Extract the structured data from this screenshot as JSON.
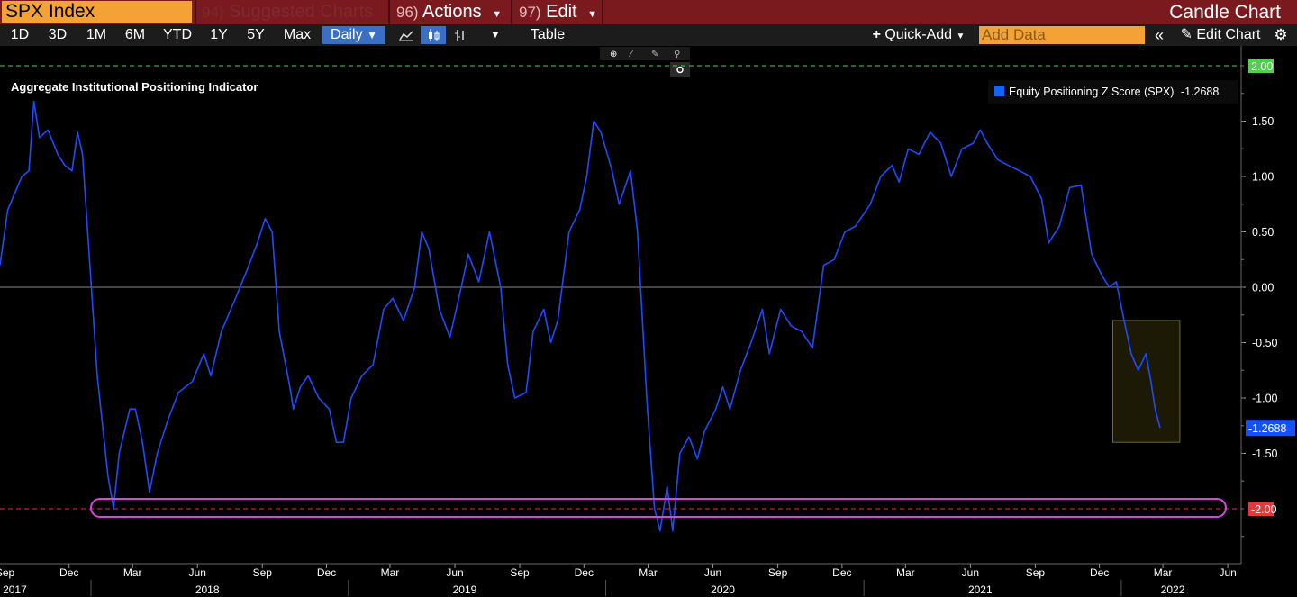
{
  "titlebar": {
    "ticker": "SPX Index",
    "menus": [
      {
        "num": "94)",
        "label": "Suggested Charts"
      },
      {
        "num": "96)",
        "label": "Actions"
      },
      {
        "num": "97)",
        "label": "Edit"
      }
    ],
    "chart_type": "Candle Chart"
  },
  "toolbar": {
    "ranges": [
      "1D",
      "3D",
      "1M",
      "6M",
      "YTD",
      "1Y",
      "5Y",
      "Max"
    ],
    "frequency": "Daily",
    "table_label": "Table",
    "quick_add_label": "Quick-Add",
    "add_data_placeholder": "Add Data",
    "edit_chart_label": "Edit Chart"
  },
  "colors": {
    "line": "#1f4bff",
    "accent_orange": "#f4a236",
    "title_bar": "#7a1a1f",
    "highlight_pink": "#e040e0",
    "box_fill": "#1c1a05"
  },
  "chart_data": {
    "type": "line",
    "title": "Aggregate Institutional Positioning Indicator",
    "series": [
      {
        "name": "Equity Positioning Z Score (SPX)",
        "last_value": "-1.2688",
        "points": [
          [
            "2017-08-25",
            0.2
          ],
          [
            "2017-09-05",
            0.7
          ],
          [
            "2017-09-25",
            1.0
          ],
          [
            "2017-10-05",
            1.05
          ],
          [
            "2017-10-12",
            1.68
          ],
          [
            "2017-10-20",
            1.35
          ],
          [
            "2017-11-01",
            1.42
          ],
          [
            "2017-11-15",
            1.2
          ],
          [
            "2017-11-25",
            1.1
          ],
          [
            "2017-12-05",
            1.05
          ],
          [
            "2017-12-13",
            1.4
          ],
          [
            "2017-12-20",
            1.2
          ],
          [
            "2018-01-10",
            -0.8
          ],
          [
            "2018-01-25",
            -1.7
          ],
          [
            "2018-02-02",
            -2.0
          ],
          [
            "2018-02-10",
            -1.5
          ],
          [
            "2018-02-25",
            -1.1
          ],
          [
            "2018-03-05",
            -1.1
          ],
          [
            "2018-03-15",
            -1.4
          ],
          [
            "2018-03-25",
            -1.85
          ],
          [
            "2018-04-05",
            -1.5
          ],
          [
            "2018-04-20",
            -1.2
          ],
          [
            "2018-05-05",
            -0.95
          ],
          [
            "2018-05-25",
            -0.85
          ],
          [
            "2018-06-10",
            -0.6
          ],
          [
            "2018-06-20",
            -0.8
          ],
          [
            "2018-07-05",
            -0.4
          ],
          [
            "2018-07-25",
            -0.1
          ],
          [
            "2018-08-10",
            0.15
          ],
          [
            "2018-08-25",
            0.4
          ],
          [
            "2018-09-05",
            0.62
          ],
          [
            "2018-09-15",
            0.5
          ],
          [
            "2018-09-25",
            -0.4
          ],
          [
            "2018-10-10",
            -0.9
          ],
          [
            "2018-10-15",
            -1.1
          ],
          [
            "2018-10-25",
            -0.9
          ],
          [
            "2018-11-05",
            -0.8
          ],
          [
            "2018-11-20",
            -1.0
          ],
          [
            "2018-12-05",
            -1.1
          ],
          [
            "2018-12-15",
            -1.4
          ],
          [
            "2018-12-25",
            -1.4
          ],
          [
            "2019-01-05",
            -1.0
          ],
          [
            "2019-01-20",
            -0.8
          ],
          [
            "2019-02-05",
            -0.7
          ],
          [
            "2019-02-20",
            -0.2
          ],
          [
            "2019-03-05",
            -0.1
          ],
          [
            "2019-03-20",
            -0.3
          ],
          [
            "2019-04-05",
            0.0
          ],
          [
            "2019-04-15",
            0.5
          ],
          [
            "2019-04-25",
            0.35
          ],
          [
            "2019-05-10",
            -0.2
          ],
          [
            "2019-05-25",
            -0.45
          ],
          [
            "2019-06-10",
            0.0
          ],
          [
            "2019-06-20",
            0.3
          ],
          [
            "2019-07-05",
            0.05
          ],
          [
            "2019-07-20",
            0.5
          ],
          [
            "2019-08-05",
            0.0
          ],
          [
            "2019-08-15",
            -0.7
          ],
          [
            "2019-08-25",
            -1.0
          ],
          [
            "2019-09-10",
            -0.95
          ],
          [
            "2019-09-20",
            -0.4
          ],
          [
            "2019-10-05",
            -0.2
          ],
          [
            "2019-10-15",
            -0.5
          ],
          [
            "2019-10-25",
            -0.3
          ],
          [
            "2019-11-10",
            0.5
          ],
          [
            "2019-11-25",
            0.7
          ],
          [
            "2019-12-05",
            1.0
          ],
          [
            "2019-12-15",
            1.5
          ],
          [
            "2019-12-25",
            1.4
          ],
          [
            "2020-01-10",
            1.05
          ],
          [
            "2020-01-20",
            0.75
          ],
          [
            "2020-02-05",
            1.05
          ],
          [
            "2020-02-15",
            0.5
          ],
          [
            "2020-02-28",
            -1.0
          ],
          [
            "2020-03-10",
            -2.0
          ],
          [
            "2020-03-18",
            -2.2
          ],
          [
            "2020-03-28",
            -1.8
          ],
          [
            "2020-04-05",
            -2.2
          ],
          [
            "2020-04-15",
            -1.5
          ],
          [
            "2020-04-28",
            -1.35
          ],
          [
            "2020-05-10",
            -1.55
          ],
          [
            "2020-05-20",
            -1.3
          ],
          [
            "2020-06-05",
            -1.1
          ],
          [
            "2020-06-15",
            -0.9
          ],
          [
            "2020-06-25",
            -1.1
          ],
          [
            "2020-07-10",
            -0.75
          ],
          [
            "2020-07-25",
            -0.5
          ],
          [
            "2020-08-10",
            -0.2
          ],
          [
            "2020-08-20",
            -0.6
          ],
          [
            "2020-09-05",
            -0.2
          ],
          [
            "2020-09-20",
            -0.35
          ],
          [
            "2020-10-05",
            -0.4
          ],
          [
            "2020-10-20",
            -0.55
          ],
          [
            "2020-11-05",
            0.2
          ],
          [
            "2020-11-20",
            0.25
          ],
          [
            "2020-12-05",
            0.5
          ],
          [
            "2020-12-20",
            0.55
          ],
          [
            "2021-01-10",
            0.75
          ],
          [
            "2021-01-25",
            1.0
          ],
          [
            "2021-02-10",
            1.1
          ],
          [
            "2021-02-20",
            0.95
          ],
          [
            "2021-03-05",
            1.25
          ],
          [
            "2021-03-20",
            1.2
          ],
          [
            "2021-04-05",
            1.4
          ],
          [
            "2021-04-20",
            1.3
          ],
          [
            "2021-05-05",
            1.0
          ],
          [
            "2021-05-20",
            1.25
          ],
          [
            "2021-06-05",
            1.3
          ],
          [
            "2021-06-15",
            1.42
          ],
          [
            "2021-06-25",
            1.3
          ],
          [
            "2021-07-10",
            1.15
          ],
          [
            "2021-07-25",
            1.1
          ],
          [
            "2021-08-10",
            1.05
          ],
          [
            "2021-08-25",
            1.0
          ],
          [
            "2021-09-10",
            0.8
          ],
          [
            "2021-09-20",
            0.4
          ],
          [
            "2021-10-05",
            0.55
          ],
          [
            "2021-10-20",
            0.9
          ],
          [
            "2021-11-05",
            0.92
          ],
          [
            "2021-11-20",
            0.3
          ],
          [
            "2021-12-05",
            0.1
          ],
          [
            "2021-12-15",
            0.0
          ],
          [
            "2021-12-25",
            0.05
          ],
          [
            "2022-01-05",
            -0.3
          ],
          [
            "2022-01-15",
            -0.6
          ],
          [
            "2022-01-25",
            -0.75
          ],
          [
            "2022-02-05",
            -0.6
          ],
          [
            "2022-02-12",
            -0.85
          ],
          [
            "2022-02-18",
            -1.1
          ],
          [
            "2022-02-25",
            -1.27
          ]
        ]
      }
    ],
    "y_ticks": [
      "1.50",
      "1.00",
      "0.50",
      "0.00",
      "-0.50",
      "-1.00",
      "-1.50"
    ],
    "ylim": [
      -2.25,
      2.0
    ],
    "reference_lines": [
      {
        "value": 2.0,
        "label": "2.00",
        "color": "#4ed14e"
      },
      {
        "value": 0.0,
        "label": "0.00",
        "color": "#888888"
      },
      {
        "value": -2.0,
        "label": "-2.00",
        "color": "#e03a3a"
      }
    ],
    "last_label": "-1.2688",
    "x_month_ticks": [
      {
        "label": "Sep",
        "date": "2017-09-01"
      },
      {
        "label": "Dec",
        "date": "2017-12-01"
      },
      {
        "label": "Mar",
        "date": "2018-03-01"
      },
      {
        "label": "Jun",
        "date": "2018-06-01"
      },
      {
        "label": "Sep",
        "date": "2018-09-01"
      },
      {
        "label": "Dec",
        "date": "2018-12-01"
      },
      {
        "label": "Mar",
        "date": "2019-03-01"
      },
      {
        "label": "Jun",
        "date": "2019-06-01"
      },
      {
        "label": "Sep",
        "date": "2019-09-01"
      },
      {
        "label": "Dec",
        "date": "2019-12-01"
      },
      {
        "label": "Mar",
        "date": "2020-03-01"
      },
      {
        "label": "Jun",
        "date": "2020-06-01"
      },
      {
        "label": "Sep",
        "date": "2020-09-01"
      },
      {
        "label": "Dec",
        "date": "2020-12-01"
      },
      {
        "label": "Mar",
        "date": "2021-03-01"
      },
      {
        "label": "Jun",
        "date": "2021-06-01"
      },
      {
        "label": "Sep",
        "date": "2021-09-01"
      },
      {
        "label": "Dec",
        "date": "2021-12-01"
      },
      {
        "label": "Mar",
        "date": "2022-03-01"
      },
      {
        "label": "Jun",
        "date": "2022-06-01"
      }
    ],
    "x_year_labels": [
      {
        "label": "2017",
        "date": "2017-09-15"
      },
      {
        "label": "2018",
        "date": "2018-06-15"
      },
      {
        "label": "2019",
        "date": "2019-06-15"
      },
      {
        "label": "2020",
        "date": "2020-06-15"
      },
      {
        "label": "2021",
        "date": "2021-06-15"
      },
      {
        "label": "2022",
        "date": "2022-03-15"
      }
    ],
    "x_range": [
      "2017-08-25",
      "2022-06-20"
    ],
    "highlight_box_dates": [
      "2021-12-20",
      "2022-03-25"
    ],
    "highlight_box_values": [
      -1.4,
      -0.3
    ]
  }
}
